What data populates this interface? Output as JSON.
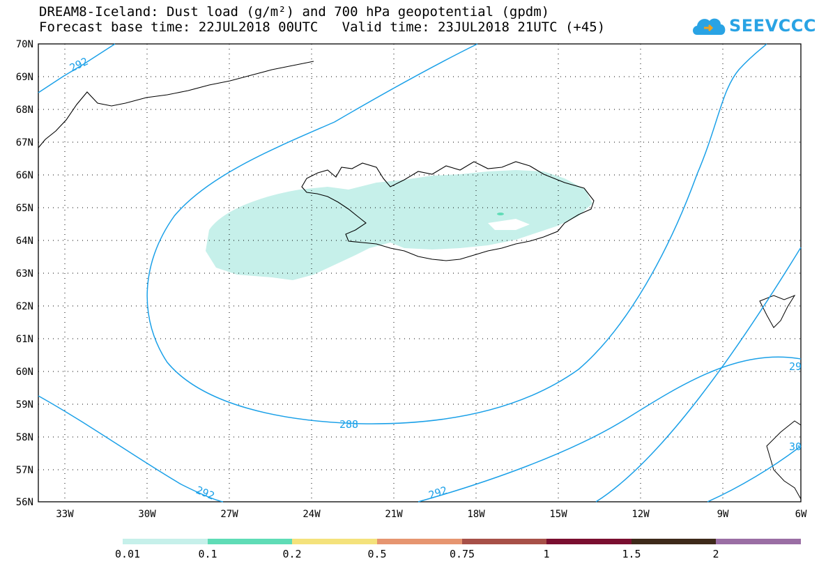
{
  "title": {
    "line1": "DREAM8-Iceland: Dust load (g/m²) and 700 hPa geopotential (gpdm)",
    "line2": "Forecast base time: 22JUL2018 00UTC   Valid time: 23JUL2018 21UTC (+45)"
  },
  "logo": {
    "text": "SEEVCCC",
    "icon": "cloud-icon",
    "color": "#29a3e4"
  },
  "map": {
    "lat_labels": [
      "70N",
      "69N",
      "68N",
      "67N",
      "66N",
      "65N",
      "64N",
      "63N",
      "62N",
      "61N",
      "60N",
      "59N",
      "58N",
      "57N",
      "56N"
    ],
    "lon_labels": [
      "33W",
      "30W",
      "27W",
      "24W",
      "21W",
      "18W",
      "15W",
      "12W",
      "9W",
      "6W"
    ],
    "lat_range": [
      56,
      70
    ],
    "lon_range": [
      -34.0,
      -6.0
    ],
    "contour_labels": [
      "292",
      "288",
      "292",
      "292",
      "29",
      "30"
    ],
    "contour_color": "#1aa0e8",
    "dust_color": "#c6f0ea",
    "grid": "dotted"
  },
  "colorbar": {
    "ticks": [
      "0.01",
      "0.1",
      "0.2",
      "0.5",
      "0.75",
      "1",
      "1.5",
      "2"
    ],
    "colors": [
      "#c6f0ea",
      "#5fdcb6",
      "#f4e27c",
      "#e69570",
      "#a75048",
      "#7a0f30",
      "#3e2a1a",
      "#9a6ea4"
    ]
  }
}
